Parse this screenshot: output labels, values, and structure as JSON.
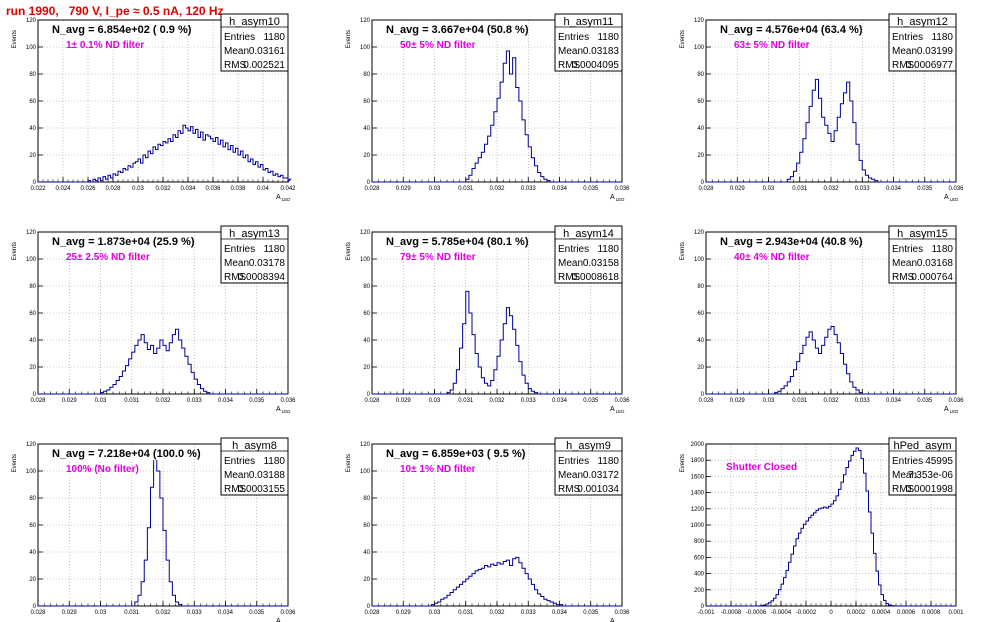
{
  "header": {
    "title": "run 1990,   790 V, I_pe ≈ 0.5 nA, 120 Hz"
  },
  "colors": {
    "header": "#e00000",
    "histogram": "#000099",
    "annotation": "#e000e0"
  },
  "chart_data": [
    {
      "type": "histogram",
      "name": "h_asym10",
      "navg": "N_avg = 6.854e+02 ( 0.9 %)",
      "annotation": "1± 0.1% ND filter",
      "stats": {
        "entries": "1180",
        "mean": "0.03161",
        "rms": "0.002521"
      },
      "stat_labels": [
        "Entries",
        "Mean",
        "RMS"
      ],
      "xlabel": "A_LED",
      "ylabel": "Events",
      "xlim": [
        0.022,
        0.042
      ],
      "ylim": [
        0,
        120
      ],
      "xticks": [
        "0.022",
        "0.024",
        "0.026",
        "0.028",
        "0.03",
        "0.032",
        "0.034",
        "0.036",
        "0.038",
        "0.04",
        "0.042"
      ],
      "yticks": [
        "0",
        "20",
        "40",
        "60",
        "80",
        "100",
        "120"
      ],
      "x_start": 0.022,
      "bin_width": 0.0002,
      "values": [
        0,
        0,
        0,
        0,
        0,
        0,
        0,
        0,
        0,
        0,
        0,
        0,
        0,
        0,
        0,
        0,
        0,
        0,
        0,
        0,
        1,
        0,
        2,
        1,
        3,
        1,
        4,
        2,
        5,
        3,
        6,
        5,
        8,
        7,
        10,
        9,
        12,
        11,
        14,
        15,
        17,
        14,
        20,
        18,
        23,
        21,
        26,
        24,
        28,
        27,
        30,
        29,
        32,
        30,
        35,
        33,
        38,
        36,
        42,
        40,
        38,
        41,
        36,
        39,
        33,
        37,
        31,
        35,
        34,
        32,
        30,
        33,
        28,
        31,
        26,
        29,
        24,
        27,
        22,
        25,
        20,
        23,
        18,
        20,
        15,
        17,
        13,
        15,
        11,
        13,
        9,
        10,
        7,
        8,
        5,
        6,
        4,
        5,
        3,
        3,
        2,
        2,
        1,
        1,
        0,
        0
      ]
    },
    {
      "type": "histogram",
      "name": "h_asym11",
      "navg": "N_avg = 3.667e+04 (50.8 %)",
      "annotation": "50± 5% ND filter",
      "stats": {
        "entries": "1180",
        "mean": "0.03183",
        "rms": "0.0004095"
      },
      "stat_labels": [
        "Entries",
        "Mean",
        "RMS"
      ],
      "xlabel": "A_LED",
      "ylabel": "Events",
      "xlim": [
        0.028,
        0.036
      ],
      "ylim": [
        0,
        120
      ],
      "xticks": [
        "0.028",
        "0.029",
        "0.03",
        "0.031",
        "0.032",
        "0.033",
        "0.034",
        "0.035",
        "0.036"
      ],
      "yticks": [
        "0",
        "20",
        "40",
        "60",
        "80",
        "100",
        "120"
      ],
      "x_start": 0.028,
      "bin_width": 0.0001,
      "values": [
        0,
        0,
        0,
        0,
        0,
        0,
        0,
        0,
        0,
        0,
        0,
        0,
        0,
        0,
        0,
        0,
        0,
        0,
        0,
        0,
        0,
        0,
        0,
        0,
        0,
        0,
        0,
        0,
        0,
        0,
        2,
        5,
        10,
        14,
        18,
        22,
        28,
        34,
        42,
        52,
        62,
        74,
        88,
        97,
        80,
        92,
        70,
        60,
        46,
        35,
        26,
        18,
        12,
        7,
        4,
        2,
        1,
        0,
        0,
        0,
        0,
        0,
        0,
        0,
        0,
        0,
        0,
        0,
        0,
        0,
        0,
        0,
        0,
        0,
        0,
        0,
        0,
        0,
        0,
        0
      ]
    },
    {
      "type": "histogram",
      "name": "h_asym12",
      "navg": "N_avg = 4.576e+04 (63.4 %)",
      "annotation": "63± 5% ND filter",
      "stats": {
        "entries": "1180",
        "mean": "0.03199",
        "rms": "0.0006977"
      },
      "stat_labels": [
        "Entries",
        "Mean",
        "RMS"
      ],
      "xlabel": "A_LED",
      "ylabel": "Events",
      "xlim": [
        0.028,
        0.036
      ],
      "ylim": [
        0,
        120
      ],
      "xticks": [
        "0.028",
        "0.029",
        "0.03",
        "0.031",
        "0.032",
        "0.033",
        "0.034",
        "0.035",
        "0.036"
      ],
      "yticks": [
        "0",
        "20",
        "40",
        "60",
        "80",
        "100",
        "120"
      ],
      "x_start": 0.028,
      "bin_width": 0.0001,
      "values": [
        0,
        0,
        0,
        0,
        0,
        0,
        0,
        0,
        0,
        0,
        0,
        0,
        0,
        0,
        0,
        0,
        0,
        0,
        0,
        0,
        0,
        0,
        0,
        0,
        0,
        0,
        2,
        4,
        8,
        14,
        22,
        32,
        44,
        56,
        68,
        76,
        62,
        48,
        42,
        36,
        30,
        38,
        48,
        58,
        66,
        74,
        60,
        44,
        28,
        16,
        9,
        5,
        3,
        2,
        1,
        0,
        0,
        0,
        0,
        0,
        0,
        0,
        0,
        0,
        0,
        0,
        0,
        0,
        0,
        0,
        0,
        0,
        0,
        0,
        0,
        0,
        0,
        0,
        0,
        0
      ]
    },
    {
      "type": "histogram",
      "name": "h_asym13",
      "navg": "N_avg = 1.873e+04 (25.9 %)",
      "annotation": "25± 2.5% ND filter",
      "stats": {
        "entries": "1180",
        "mean": "0.03178",
        "rms": "0.0008394"
      },
      "stat_labels": [
        "Entries",
        "Mean",
        "RMS"
      ],
      "xlabel": "A_LED",
      "ylabel": "Events",
      "xlim": [
        0.028,
        0.036
      ],
      "ylim": [
        0,
        120
      ],
      "xticks": [
        "0.028",
        "0.029",
        "0.03",
        "0.031",
        "0.032",
        "0.033",
        "0.034",
        "0.035",
        "0.036"
      ],
      "yticks": [
        "0",
        "20",
        "40",
        "60",
        "80",
        "100",
        "120"
      ],
      "x_start": 0.028,
      "bin_width": 0.0001,
      "values": [
        0,
        0,
        0,
        0,
        0,
        0,
        0,
        0,
        0,
        0,
        0,
        0,
        0,
        0,
        0,
        0,
        0,
        0,
        0,
        0,
        1,
        2,
        3,
        5,
        7,
        10,
        13,
        17,
        21,
        26,
        31,
        36,
        40,
        44,
        38,
        33,
        36,
        30,
        34,
        40,
        36,
        32,
        38,
        44,
        48,
        40,
        34,
        28,
        22,
        16,
        11,
        7,
        4,
        2,
        1,
        0,
        0,
        0,
        0,
        0,
        0,
        0,
        0,
        0,
        0,
        0,
        0,
        0,
        0,
        0,
        0,
        0,
        0,
        0,
        0,
        0,
        0,
        0,
        0,
        0
      ]
    },
    {
      "type": "histogram",
      "name": "h_asym14",
      "navg": "N_avg = 5.785e+04 (80.1 %)",
      "annotation": "79± 5% ND filter",
      "stats": {
        "entries": "1180",
        "mean": "0.03158",
        "rms": "0.0008618"
      },
      "stat_labels": [
        "Entries",
        "Mean",
        "RMS"
      ],
      "xlabel": "A_LED",
      "ylabel": "Events",
      "xlim": [
        0.028,
        0.036
      ],
      "ylim": [
        0,
        120
      ],
      "xticks": [
        "0.028",
        "0.029",
        "0.03",
        "0.031",
        "0.032",
        "0.033",
        "0.034",
        "0.035",
        "0.036"
      ],
      "yticks": [
        "0",
        "20",
        "40",
        "60",
        "80",
        "100",
        "120"
      ],
      "x_start": 0.028,
      "bin_width": 0.0001,
      "values": [
        0,
        0,
        0,
        0,
        0,
        0,
        0,
        0,
        0,
        0,
        0,
        0,
        0,
        0,
        0,
        0,
        0,
        0,
        0,
        0,
        0,
        0,
        0,
        0,
        1,
        3,
        8,
        18,
        34,
        52,
        76,
        60,
        44,
        30,
        20,
        12,
        8,
        6,
        10,
        18,
        28,
        40,
        52,
        64,
        58,
        48,
        36,
        24,
        14,
        8,
        4,
        2,
        1,
        0,
        0,
        0,
        0,
        0,
        0,
        0,
        0,
        0,
        0,
        0,
        0,
        0,
        0,
        0,
        0,
        0,
        0,
        0,
        0,
        0,
        0,
        0,
        0,
        0,
        0,
        0
      ]
    },
    {
      "type": "histogram",
      "name": "h_asym15",
      "navg": "N_avg = 2.943e+04 (40.8 %)",
      "annotation": "40± 4% ND filter",
      "stats": {
        "entries": "1180",
        "mean": "0.03168",
        "rms": "0.000764"
      },
      "stat_labels": [
        "Entries",
        "Mean",
        "RMS"
      ],
      "xlabel": "A_LED",
      "ylabel": "Events",
      "xlim": [
        0.028,
        0.036
      ],
      "ylim": [
        0,
        120
      ],
      "xticks": [
        "0.028",
        "0.029",
        "0.03",
        "0.031",
        "0.032",
        "0.033",
        "0.034",
        "0.035",
        "0.036"
      ],
      "yticks": [
        "0",
        "20",
        "40",
        "60",
        "80",
        "100",
        "120"
      ],
      "x_start": 0.028,
      "bin_width": 0.0001,
      "values": [
        0,
        0,
        0,
        0,
        0,
        0,
        0,
        0,
        0,
        0,
        0,
        0,
        0,
        0,
        0,
        0,
        0,
        0,
        0,
        0,
        0,
        0,
        1,
        2,
        4,
        6,
        9,
        13,
        18,
        24,
        30,
        36,
        42,
        46,
        40,
        34,
        30,
        36,
        42,
        48,
        50,
        44,
        38,
        30,
        22,
        15,
        9,
        5,
        3,
        1,
        0,
        0,
        0,
        0,
        0,
        0,
        0,
        0,
        0,
        0,
        0,
        0,
        0,
        0,
        0,
        0,
        0,
        0,
        0,
        0,
        0,
        0,
        0,
        0,
        0,
        0,
        0,
        0,
        0,
        0
      ]
    },
    {
      "type": "histogram",
      "name": "h_asym8",
      "navg": "N_avg = 7.218e+04 (100.0 %)",
      "annotation": "100% (No filter)",
      "stats": {
        "entries": "1180",
        "mean": "0.03188",
        "rms": "0.0003155"
      },
      "stat_labels": [
        "Entries",
        "Mean",
        "RMS"
      ],
      "xlabel": "A_LED",
      "ylabel": "Events",
      "xlim": [
        0.028,
        0.036
      ],
      "ylim": [
        0,
        120
      ],
      "xticks": [
        "0.028",
        "0.029",
        "0.03",
        "0.031",
        "0.032",
        "0.033",
        "0.034",
        "0.035",
        "0.036"
      ],
      "yticks": [
        "0",
        "20",
        "40",
        "60",
        "80",
        "100",
        "120"
      ],
      "x_start": 0.028,
      "bin_width": 0.0001,
      "values": [
        0,
        0,
        0,
        0,
        0,
        0,
        0,
        0,
        0,
        0,
        0,
        0,
        0,
        0,
        0,
        0,
        0,
        0,
        0,
        0,
        0,
        0,
        0,
        0,
        0,
        0,
        0,
        0,
        0,
        0,
        0,
        3,
        8,
        18,
        34,
        58,
        88,
        112,
        100,
        80,
        56,
        34,
        18,
        8,
        3,
        1,
        0,
        0,
        0,
        0,
        0,
        0,
        0,
        0,
        0,
        0,
        0,
        0,
        0,
        0,
        0,
        0,
        0,
        0,
        0,
        0,
        0,
        0,
        0,
        0,
        0,
        0,
        0,
        0,
        0,
        0,
        0,
        0,
        0,
        0
      ]
    },
    {
      "type": "histogram",
      "name": "h_asym9",
      "navg": "N_avg = 6.859e+03 ( 9.5 %)",
      "annotation": "10± 1% ND filter",
      "stats": {
        "entries": "1180",
        "mean": "0.03172",
        "rms": "0.001034"
      },
      "stat_labels": [
        "Entries",
        "Mean",
        "RMS"
      ],
      "xlabel": "A_LED",
      "ylabel": "Events",
      "xlim": [
        0.028,
        0.036
      ],
      "ylim": [
        0,
        120
      ],
      "xticks": [
        "0.028",
        "0.029",
        "0.03",
        "0.031",
        "0.032",
        "0.033",
        "0.034",
        "0.035",
        "0.036"
      ],
      "yticks": [
        "0",
        "20",
        "40",
        "60",
        "80",
        "100",
        "120"
      ],
      "x_start": 0.028,
      "bin_width": 0.0001,
      "values": [
        0,
        0,
        0,
        0,
        0,
        0,
        0,
        0,
        0,
        0,
        0,
        0,
        0,
        0,
        0,
        0,
        0,
        0,
        0,
        1,
        2,
        3,
        5,
        6,
        8,
        10,
        12,
        14,
        16,
        18,
        20,
        22,
        24,
        26,
        27,
        28,
        30,
        29,
        31,
        30,
        32,
        31,
        33,
        34,
        30,
        35,
        36,
        32,
        28,
        24,
        20,
        16,
        12,
        9,
        7,
        5,
        4,
        3,
        2,
        1,
        1,
        0,
        0,
        0,
        0,
        0,
        0,
        0,
        0,
        0,
        0,
        0,
        0,
        0,
        0,
        0,
        0,
        0,
        0,
        0
      ]
    },
    {
      "type": "histogram",
      "name": "hPed_asym",
      "navg": "",
      "annotation": "Shutter Closed",
      "stats": {
        "entries": "45995",
        "mean": "7.353e-06",
        "rms": "0.0001998"
      },
      "stat_labels": [
        "Entries",
        "Mean",
        "RMS"
      ],
      "xlabel": "",
      "ylabel": "Events",
      "xlim": [
        -0.001,
        0.001
      ],
      "ylim": [
        0,
        2000
      ],
      "xticks": [
        "-0.001",
        "-0.0008",
        "-0.0006",
        "-0.0004",
        "-0.0002",
        "0",
        "0.0002",
        "0.0004",
        "0.0006",
        "0.0008",
        "0.001"
      ],
      "yticks": [
        "0",
        "200",
        "400",
        "600",
        "800",
        "1000",
        "1200",
        "1400",
        "1600",
        "1800",
        "2000"
      ],
      "x_start": -0.001,
      "bin_width": 2e-05,
      "values": [
        0,
        0,
        0,
        0,
        0,
        0,
        0,
        0,
        0,
        0,
        0,
        0,
        0,
        0,
        0,
        0,
        0,
        0,
        0,
        0,
        0,
        2,
        6,
        12,
        24,
        40,
        64,
        96,
        140,
        200,
        270,
        350,
        440,
        540,
        640,
        740,
        830,
        900,
        960,
        1010,
        1050,
        1090,
        1120,
        1150,
        1180,
        1200,
        1210,
        1220,
        1210,
        1230,
        1260,
        1300,
        1360,
        1440,
        1530,
        1620,
        1710,
        1790,
        1860,
        1910,
        1950,
        1920,
        1820,
        1640,
        1420,
        1160,
        900,
        650,
        430,
        260,
        140,
        70,
        30,
        12,
        4,
        1,
        0,
        0,
        0,
        0,
        0,
        0,
        0,
        0,
        0,
        0,
        0,
        0,
        0,
        0,
        0,
        0,
        0,
        0,
        0,
        0,
        0,
        0,
        0,
        0
      ]
    }
  ]
}
